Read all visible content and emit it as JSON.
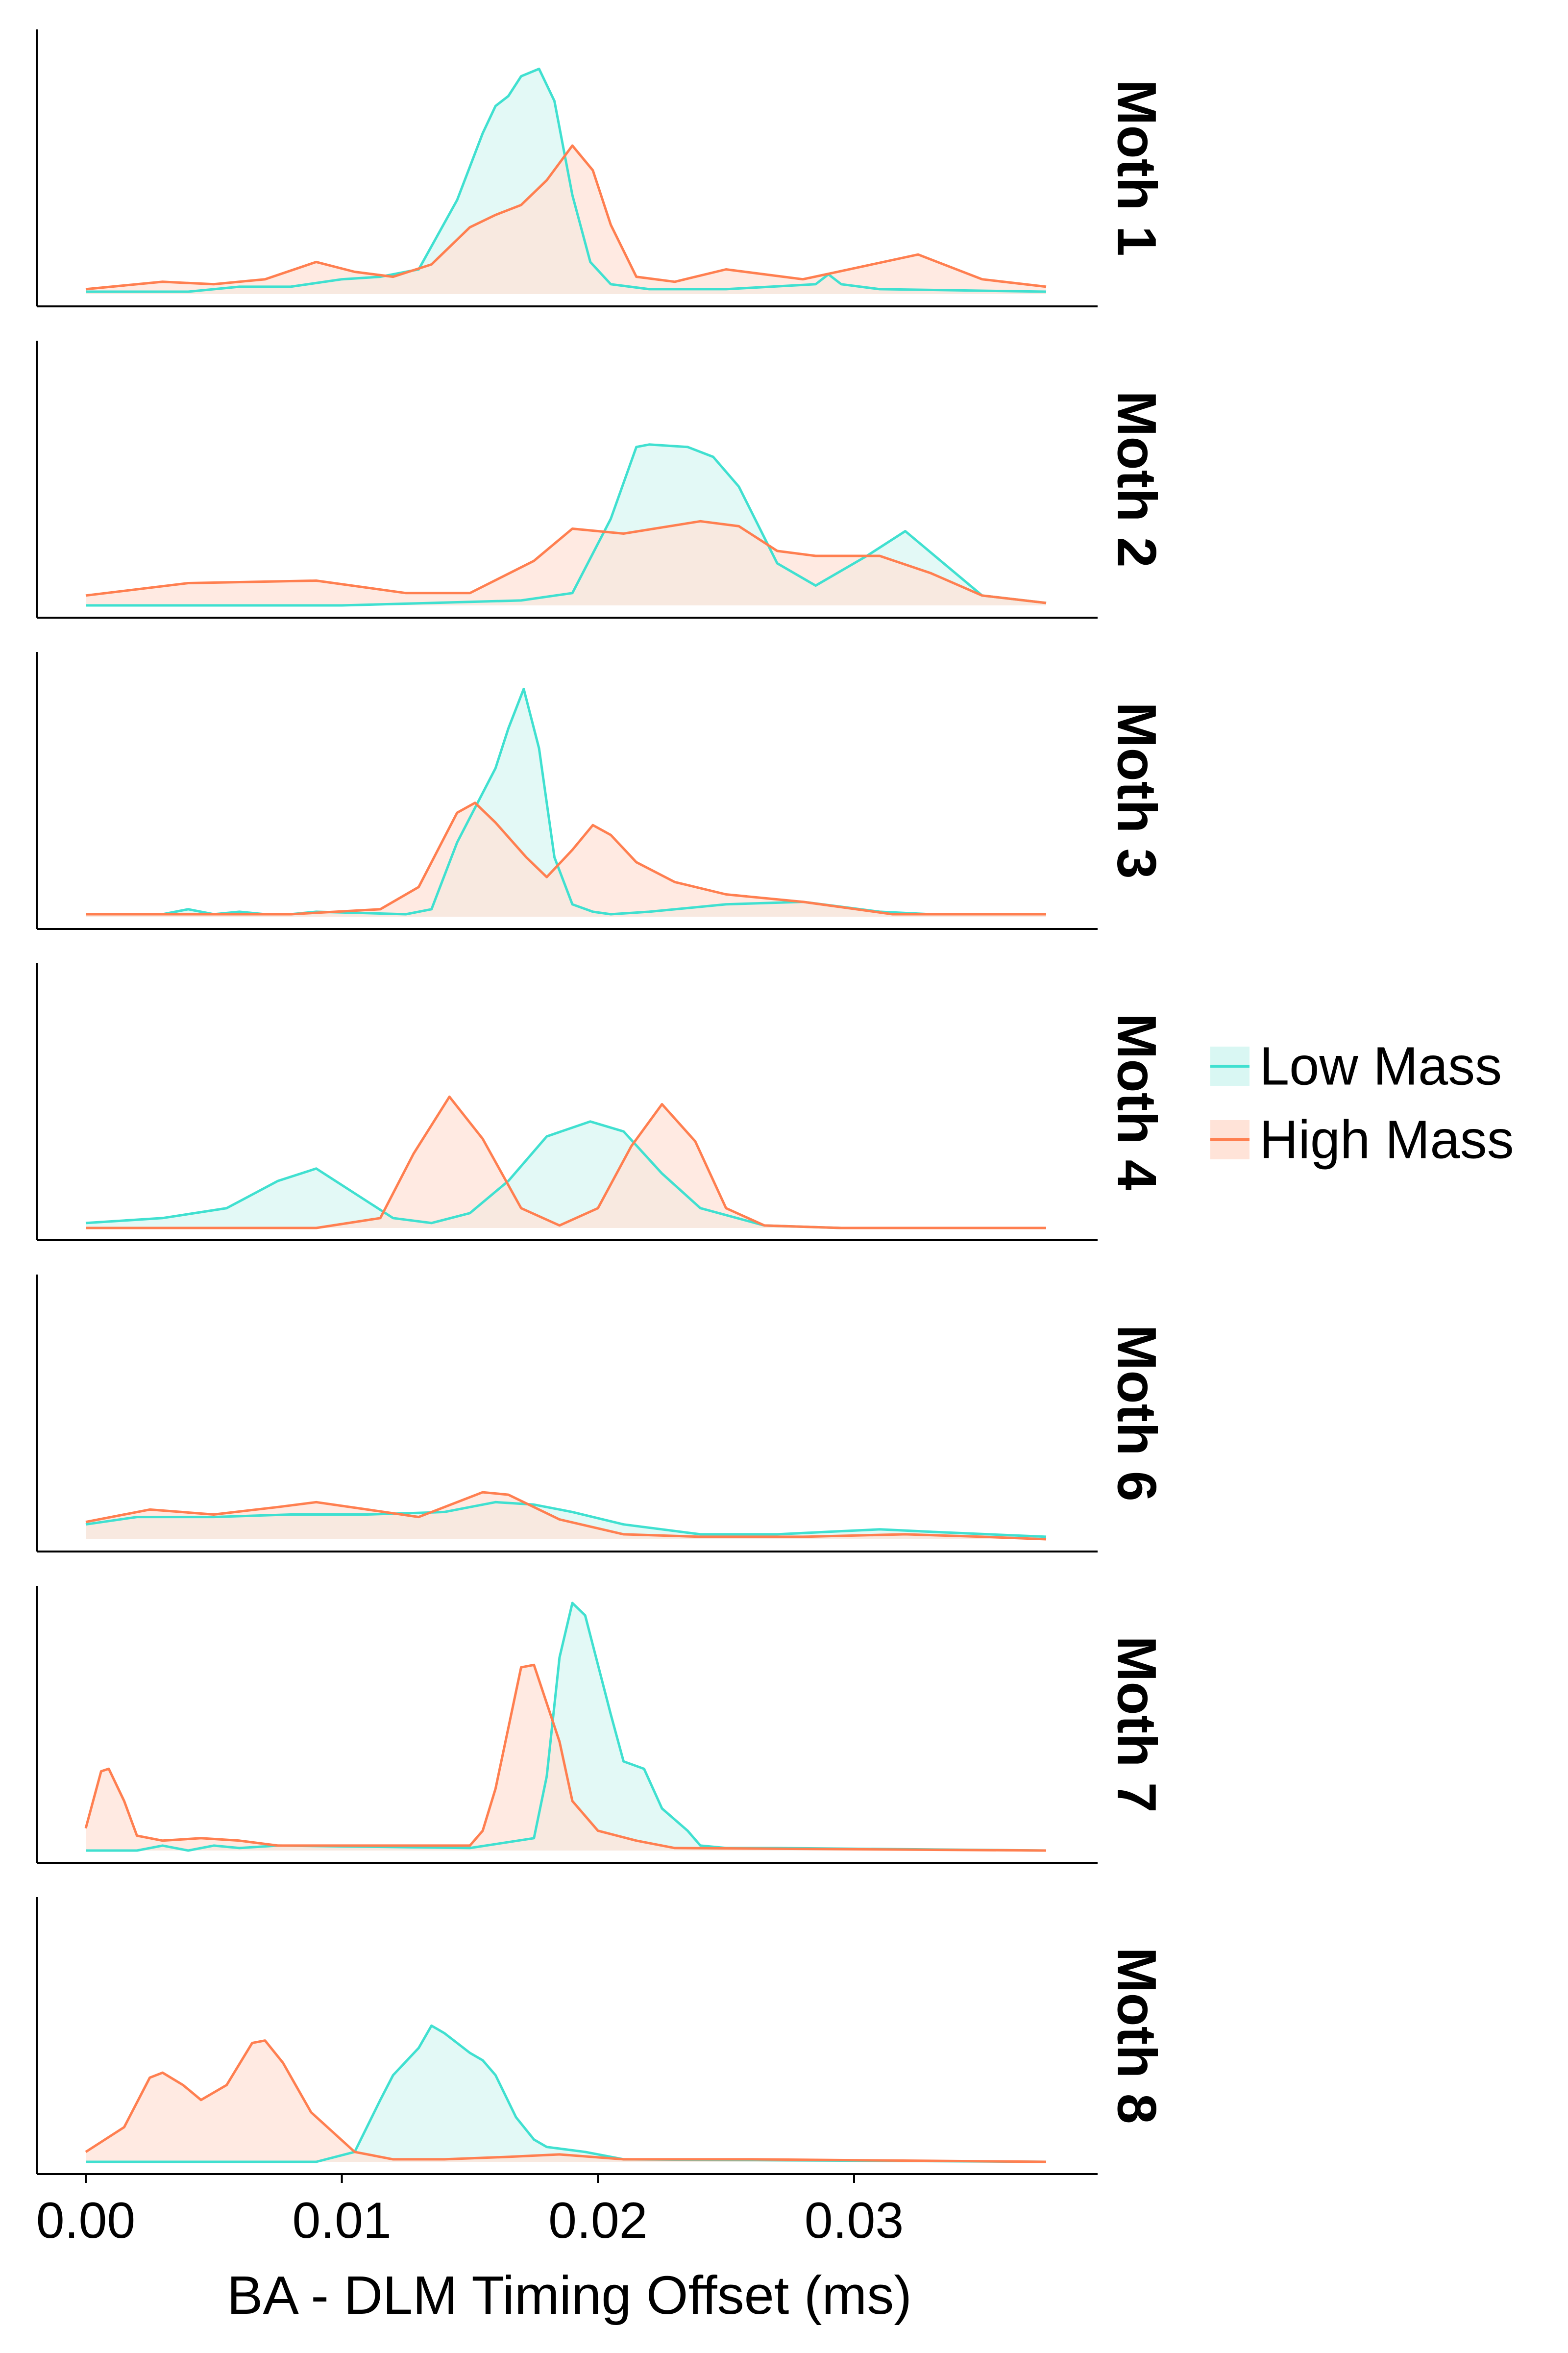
{
  "chart_data": {
    "type": "area",
    "subtype": "faceted density plot",
    "xlabel": "BA - DLM Timing Offset (ms)",
    "ylabel": "",
    "xlim": [
      -0.001,
      0.0375
    ],
    "x_ticks": [
      0.0,
      0.01,
      0.02,
      0.03
    ],
    "x_tick_labels": [
      "0.00",
      "0.01",
      "0.02",
      "0.03"
    ],
    "grid": false,
    "legend_position": "right",
    "colors": {
      "Low Mass": "#40E0D0",
      "High Mass": "#FF7F50"
    },
    "legend": [
      {
        "label": "Low Mass",
        "color": "#40E0D0",
        "fill": "#D9F7F3"
      },
      {
        "label": "High Mass",
        "color": "#FF7F50",
        "fill": "#FFE3D8"
      }
    ],
    "facets": [
      {
        "label": "Moth 1",
        "series": [
          {
            "name": "Low Mass",
            "x": [
              0,
              0.004,
              0.006,
              0.008,
              0.01,
              0.0115,
              0.013,
              0.0145,
              0.0155,
              0.016,
              0.0165,
              0.017,
              0.0177,
              0.0183,
              0.019,
              0.0197,
              0.0205,
              0.022,
              0.025,
              0.0285,
              0.029,
              0.0295,
              0.031,
              0.0375
            ],
            "y": [
              0.01,
              0.01,
              0.03,
              0.03,
              0.06,
              0.07,
              0.1,
              0.38,
              0.65,
              0.76,
              0.8,
              0.88,
              0.91,
              0.78,
              0.4,
              0.13,
              0.04,
              0.02,
              0.02,
              0.04,
              0.08,
              0.04,
              0.02,
              0.01
            ]
          },
          {
            "name": "High Mass",
            "x": [
              0,
              0.003,
              0.005,
              0.007,
              0.009,
              0.0105,
              0.012,
              0.0135,
              0.015,
              0.016,
              0.017,
              0.018,
              0.019,
              0.0198,
              0.0205,
              0.0215,
              0.023,
              0.025,
              0.028,
              0.0325,
              0.035,
              0.0375
            ],
            "y": [
              0.02,
              0.05,
              0.04,
              0.06,
              0.13,
              0.09,
              0.07,
              0.12,
              0.27,
              0.32,
              0.36,
              0.46,
              0.6,
              0.5,
              0.28,
              0.07,
              0.05,
              0.1,
              0.06,
              0.16,
              0.06,
              0.03
            ]
          }
        ]
      },
      {
        "label": "Moth 2",
        "series": [
          {
            "name": "Low Mass",
            "x": [
              0,
              0.01,
              0.017,
              0.019,
              0.0205,
              0.0215,
              0.022,
              0.0235,
              0.0245,
              0.0255,
              0.027,
              0.0285,
              0.0305,
              0.032,
              0.0335,
              0.035,
              0.0375
            ],
            "y": [
              0,
              0,
              0.02,
              0.05,
              0.35,
              0.64,
              0.65,
              0.64,
              0.6,
              0.48,
              0.17,
              0.08,
              0.2,
              0.3,
              0.17,
              0.04,
              0.01
            ]
          },
          {
            "name": "High Mass",
            "x": [
              0,
              0.004,
              0.009,
              0.0125,
              0.015,
              0.0175,
              0.019,
              0.021,
              0.024,
              0.0255,
              0.027,
              0.0285,
              0.031,
              0.033,
              0.035,
              0.0375
            ],
            "y": [
              0.04,
              0.09,
              0.1,
              0.05,
              0.05,
              0.18,
              0.31,
              0.29,
              0.34,
              0.32,
              0.22,
              0.2,
              0.2,
              0.13,
              0.04,
              0.01
            ]
          }
        ]
      },
      {
        "label": "Moth 3",
        "series": [
          {
            "name": "Low Mass",
            "x": [
              0,
              0.003,
              0.004,
              0.005,
              0.006,
              0.007,
              0.008,
              0.009,
              0.0125,
              0.0135,
              0.0145,
              0.015,
              0.016,
              0.0165,
              0.0171,
              0.0177,
              0.0183,
              0.019,
              0.0198,
              0.0205,
              0.022,
              0.025,
              0.028,
              0.031,
              0.033,
              0.0375
            ],
            "y": [
              0.01,
              0.01,
              0.03,
              0.01,
              0.02,
              0.01,
              0.01,
              0.02,
              0.01,
              0.03,
              0.3,
              0.4,
              0.6,
              0.76,
              0.92,
              0.68,
              0.24,
              0.05,
              0.02,
              0.01,
              0.02,
              0.05,
              0.06,
              0.02,
              0.01,
              0.01
            ]
          },
          {
            "name": "High Mass",
            "x": [
              0,
              0.008,
              0.0115,
              0.013,
              0.0145,
              0.0152,
              0.016,
              0.0172,
              0.018,
              0.019,
              0.0198,
              0.0205,
              0.0215,
              0.023,
              0.025,
              0.028,
              0.0315,
              0.033,
              0.0375
            ],
            "y": [
              0.01,
              0.01,
              0.03,
              0.12,
              0.42,
              0.46,
              0.38,
              0.24,
              0.16,
              0.27,
              0.37,
              0.33,
              0.22,
              0.14,
              0.09,
              0.06,
              0.01,
              0.01,
              0.01
            ]
          }
        ]
      },
      {
        "label": "Moth 4",
        "series": [
          {
            "name": "Low Mass",
            "x": [
              0,
              0.003,
              0.0055,
              0.0075,
              0.009,
              0.0105,
              0.012,
              0.0135,
              0.015,
              0.0165,
              0.018,
              0.0197,
              0.021,
              0.0225,
              0.024,
              0.0265,
              0.0295,
              0.033,
              0.0375
            ],
            "y": [
              0.02,
              0.04,
              0.08,
              0.19,
              0.24,
              0.14,
              0.04,
              0.02,
              0.06,
              0.19,
              0.37,
              0.43,
              0.39,
              0.22,
              0.08,
              0.01,
              0,
              0,
              0
            ]
          },
          {
            "name": "High Mass",
            "x": [
              0,
              0.009,
              0.0115,
              0.0128,
              0.0142,
              0.0155,
              0.017,
              0.0185,
              0.02,
              0.0213,
              0.0225,
              0.0238,
              0.025,
              0.0265,
              0.0295,
              0.0375
            ],
            "y": [
              0,
              0,
              0.04,
              0.3,
              0.53,
              0.36,
              0.08,
              0.01,
              0.08,
              0.33,
              0.5,
              0.35,
              0.08,
              0.01,
              0,
              0
            ]
          }
        ]
      },
      {
        "label": "Moth 6",
        "series": [
          {
            "name": "Low Mass",
            "x": [
              0,
              0.002,
              0.005,
              0.008,
              0.011,
              0.014,
              0.016,
              0.0175,
              0.019,
              0.021,
              0.024,
              0.027,
              0.029,
              0.031,
              0.033,
              0.0375
            ],
            "y": [
              0.06,
              0.09,
              0.09,
              0.1,
              0.1,
              0.11,
              0.15,
              0.14,
              0.11,
              0.06,
              0.02,
              0.02,
              0.03,
              0.04,
              0.03,
              0.01
            ]
          },
          {
            "name": "High Mass",
            "x": [
              0,
              0.0025,
              0.005,
              0.0075,
              0.009,
              0.011,
              0.013,
              0.0155,
              0.0165,
              0.0185,
              0.021,
              0.024,
              0.028,
              0.032,
              0.035,
              0.0375
            ],
            "y": [
              0.07,
              0.12,
              0.1,
              0.13,
              0.15,
              0.12,
              0.09,
              0.19,
              0.18,
              0.08,
              0.02,
              0.01,
              0.01,
              0.02,
              0.01,
              0
            ]
          }
        ]
      },
      {
        "label": "Moth 7",
        "series": [
          {
            "name": "Low Mass",
            "x": [
              0,
              0.002,
              0.003,
              0.004,
              0.005,
              0.006,
              0.0075,
              0.015,
              0.0175,
              0.018,
              0.0185,
              0.019,
              0.0195,
              0.0205,
              0.021,
              0.0218,
              0.0225,
              0.0235,
              0.024,
              0.025,
              0.027,
              0.0375
            ],
            "y": [
              0,
              0,
              0.02,
              0,
              0.02,
              0.01,
              0.02,
              0.01,
              0.05,
              0.3,
              0.78,
              1.0,
              0.95,
              0.55,
              0.36,
              0.33,
              0.17,
              0.08,
              0.02,
              0.01,
              0.01,
              0
            ]
          },
          {
            "name": "High Mass",
            "x": [
              0,
              0.0006,
              0.0009,
              0.0015,
              0.002,
              0.003,
              0.0045,
              0.006,
              0.0075,
              0.015,
              0.0155,
              0.016,
              0.017,
              0.0175,
              0.0185,
              0.019,
              0.02,
              0.0215,
              0.023,
              0.0375
            ],
            "y": [
              0.09,
              0.32,
              0.33,
              0.2,
              0.06,
              0.04,
              0.05,
              0.04,
              0.02,
              0.02,
              0.08,
              0.25,
              0.74,
              0.75,
              0.44,
              0.2,
              0.08,
              0.04,
              0.01,
              0
            ]
          }
        ]
      },
      {
        "label": "Moth 8",
        "series": [
          {
            "name": "Low Mass",
            "x": [
              0,
              0.009,
              0.0105,
              0.0115,
              0.012,
              0.013,
              0.0135,
              0.014,
              0.015,
              0.0155,
              0.016,
              0.0168,
              0.0175,
              0.018,
              0.0195,
              0.021,
              0.0375
            ],
            "y": [
              0,
              0,
              0.04,
              0.25,
              0.35,
              0.46,
              0.55,
              0.52,
              0.44,
              0.41,
              0.35,
              0.18,
              0.09,
              0.06,
              0.04,
              0.01,
              0
            ]
          },
          {
            "name": "High Mass",
            "x": [
              0,
              0.0015,
              0.0025,
              0.003,
              0.0038,
              0.0045,
              0.0055,
              0.0065,
              0.007,
              0.0077,
              0.0088,
              0.0105,
              0.012,
              0.014,
              0.0165,
              0.0185,
              0.021,
              0.026,
              0.0375
            ],
            "y": [
              0.04,
              0.14,
              0.34,
              0.36,
              0.31,
              0.25,
              0.31,
              0.48,
              0.49,
              0.4,
              0.2,
              0.04,
              0.01,
              0.01,
              0.02,
              0.03,
              0.01,
              0.01,
              0
            ]
          }
        ]
      }
    ]
  }
}
